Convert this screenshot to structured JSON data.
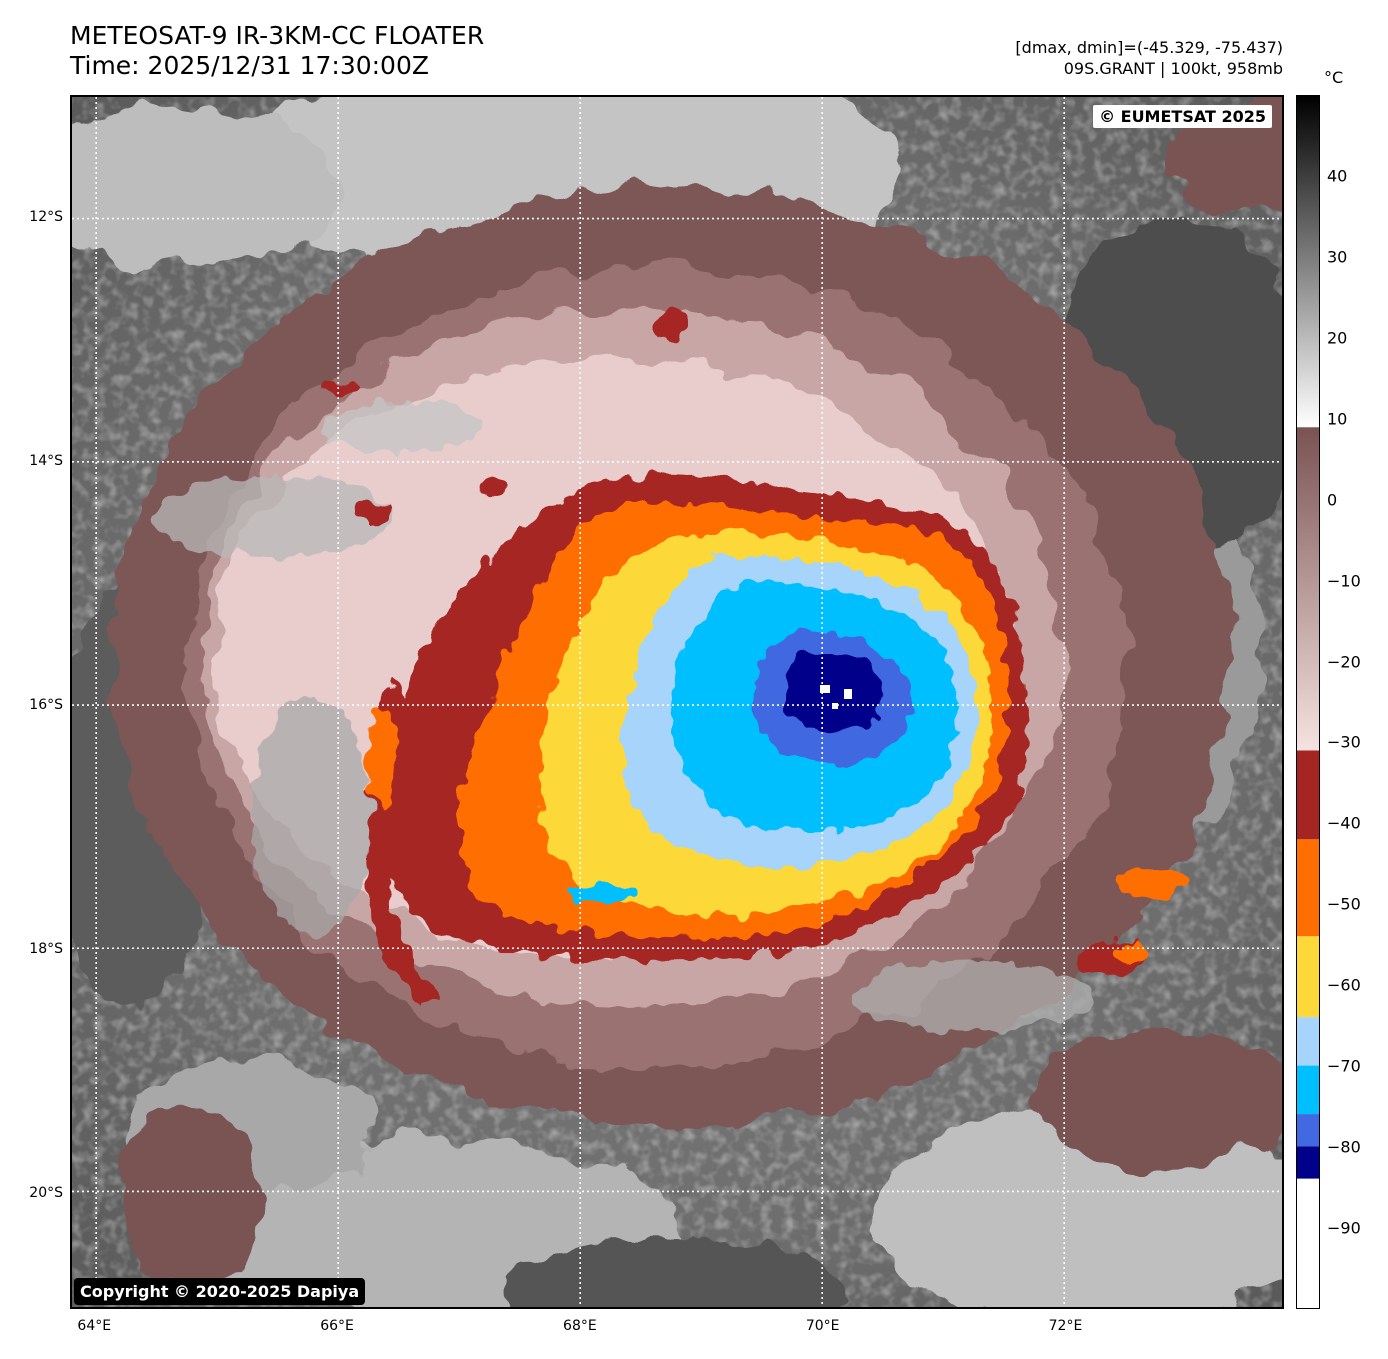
{
  "header": {
    "title_line1": "METEOSAT-9 IR-3KM-CC FLOATER",
    "title_line2": "Time: 2025/12/31 17:30:00Z",
    "range_text": "[dmax, dmin]=(-45.329, -75.437)",
    "storm_text": "09S.GRANT | 100kt, 958mb"
  },
  "map": {
    "credit_top": "© EUMETSAT 2025",
    "credit_bottom": "Copyright © 2020-2025 Dapiya",
    "lat_range": [
      -20.95,
      -11.0
    ],
    "lon_range": [
      63.8,
      73.8
    ],
    "lat_labels": [
      "12°S",
      "14°S",
      "16°S",
      "18°S",
      "20°S"
    ],
    "lat_values": [
      -12,
      -14,
      -16,
      -18,
      -20
    ],
    "lon_labels": [
      "64°E",
      "66°E",
      "68°E",
      "70°E",
      "72°E"
    ],
    "lon_values": [
      64,
      66,
      68,
      70,
      72
    ],
    "grid": "dotted white"
  },
  "colorbar": {
    "unit": "°C",
    "range": [
      -100,
      50
    ],
    "tick_labels": [
      "40",
      "30",
      "20",
      "10",
      "0",
      "−10",
      "−20",
      "−30",
      "−40",
      "−50",
      "−60",
      "−70",
      "−80",
      "−90"
    ],
    "tick_values": [
      40,
      30,
      20,
      10,
      0,
      -10,
      -20,
      -30,
      -40,
      -50,
      -60,
      -70,
      -80,
      -90
    ],
    "bands": [
      {
        "from": 9,
        "to": 50,
        "type": "gray"
      },
      {
        "from": -31,
        "to": 9,
        "type": "brown-pink"
      },
      {
        "from": -42,
        "to": -31,
        "color": "#a52523"
      },
      {
        "from": -54,
        "to": -42,
        "color": "#ff6e00"
      },
      {
        "from": -64,
        "to": -54,
        "color": "#fcd838"
      },
      {
        "from": -70,
        "to": -64,
        "color": "#a7d4fb"
      },
      {
        "from": -76,
        "to": -70,
        "color": "#00bfff"
      },
      {
        "from": -80,
        "to": -76,
        "color": "#4169e1"
      },
      {
        "from": -84,
        "to": -80,
        "color": "#00008b"
      },
      {
        "from": -100,
        "to": -84,
        "color": "#ffffff"
      }
    ]
  },
  "colors": {
    "cold_dark_red": "#a52523",
    "orange": "#ff6e00",
    "yellow": "#fcd838",
    "light_blue": "#a7d4fb",
    "sky_blue": "#00bfff",
    "royal_blue": "#4169e1",
    "navy": "#00008b",
    "pink": "#f1d6d6",
    "brown": "#7a5252",
    "gray_dark": "#585858",
    "gray_mid": "#8a8a8a",
    "gray_light": "#c8c8c8"
  }
}
